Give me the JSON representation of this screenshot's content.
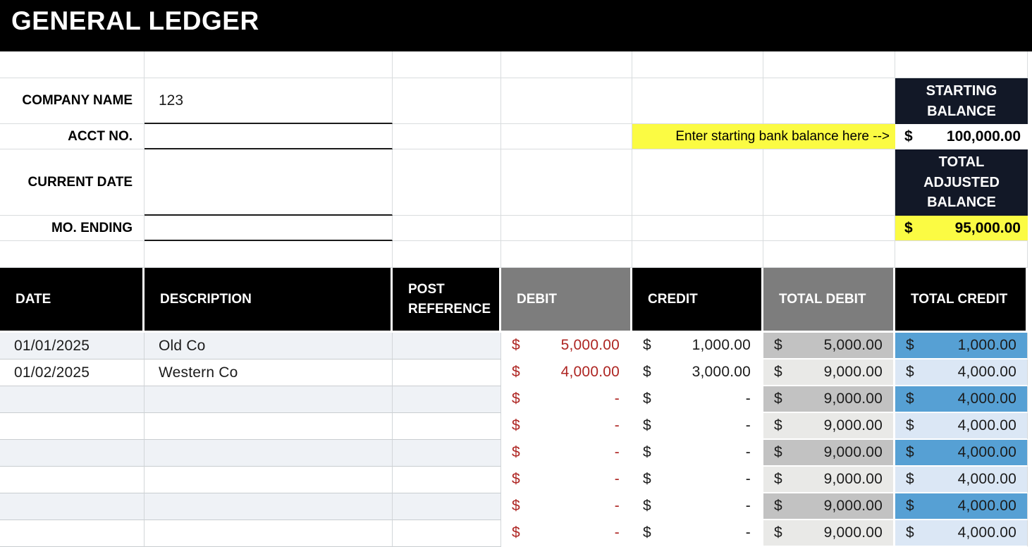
{
  "title": "GENERAL LEDGER",
  "form": {
    "fields": [
      {
        "label": "COMPANY NAME",
        "value": "123"
      },
      {
        "label": "ACCT NO.",
        "value": ""
      },
      {
        "label": "CURRENT DATE",
        "value": ""
      },
      {
        "label": "MO. ENDING",
        "value": ""
      }
    ]
  },
  "balances": {
    "starting": {
      "label": "STARTING BALANCE",
      "hint": "Enter starting bank balance here -->",
      "currency": "$",
      "amount": "100,000.00"
    },
    "adjusted": {
      "label": "TOTAL ADJUSTED BALANCE",
      "currency": "$",
      "amount": "95,000.00"
    }
  },
  "table": {
    "currency_symbol": "$",
    "headers": [
      "DATE",
      "DESCRIPTION",
      "POST REFERENCE",
      "DEBIT",
      "CREDIT",
      "TOTAL DEBIT",
      "TOTAL CREDIT"
    ],
    "rows": [
      {
        "date": "01/01/2025",
        "description": "Old Co",
        "post_reference": "",
        "debit": "5,000.00",
        "credit": "1,000.00",
        "total_debit": "5,000.00",
        "total_credit": "1,000.00"
      },
      {
        "date": "01/02/2025",
        "description": "Western Co",
        "post_reference": "",
        "debit": "4,000.00",
        "credit": "3,000.00",
        "total_debit": "9,000.00",
        "total_credit": "4,000.00"
      },
      {
        "date": "",
        "description": "",
        "post_reference": "",
        "debit": "-",
        "credit": "-",
        "total_debit": "9,000.00",
        "total_credit": "4,000.00"
      },
      {
        "date": "",
        "description": "",
        "post_reference": "",
        "debit": "-",
        "credit": "-",
        "total_debit": "9,000.00",
        "total_credit": "4,000.00"
      },
      {
        "date": "",
        "description": "",
        "post_reference": "",
        "debit": "-",
        "credit": "-",
        "total_debit": "9,000.00",
        "total_credit": "4,000.00"
      },
      {
        "date": "",
        "description": "",
        "post_reference": "",
        "debit": "-",
        "credit": "-",
        "total_debit": "9,000.00",
        "total_credit": "4,000.00"
      },
      {
        "date": "",
        "description": "",
        "post_reference": "",
        "debit": "-",
        "credit": "-",
        "total_debit": "9,000.00",
        "total_credit": "4,000.00"
      },
      {
        "date": "",
        "description": "",
        "post_reference": "",
        "debit": "-",
        "credit": "-",
        "total_debit": "9,000.00",
        "total_credit": "4,000.00"
      }
    ]
  },
  "colors": {
    "banner_bg": "#000000",
    "banner_text": "#ffffff",
    "panel_dark_bg": "#121827",
    "highlight_yellow": "#fbfb43",
    "header_black": "#000000",
    "header_gray": "#7d7d7d",
    "row_light": "#eff2f6",
    "row_white": "#ffffff",
    "total_debit_strong": "#c2c2c2",
    "total_debit_light": "#e9e9e7",
    "total_credit_strong": "#56a0d4",
    "total_credit_light": "#dbe7f5",
    "debit_text_red": "#ae2522",
    "gridline": "#d9dcde"
  }
}
